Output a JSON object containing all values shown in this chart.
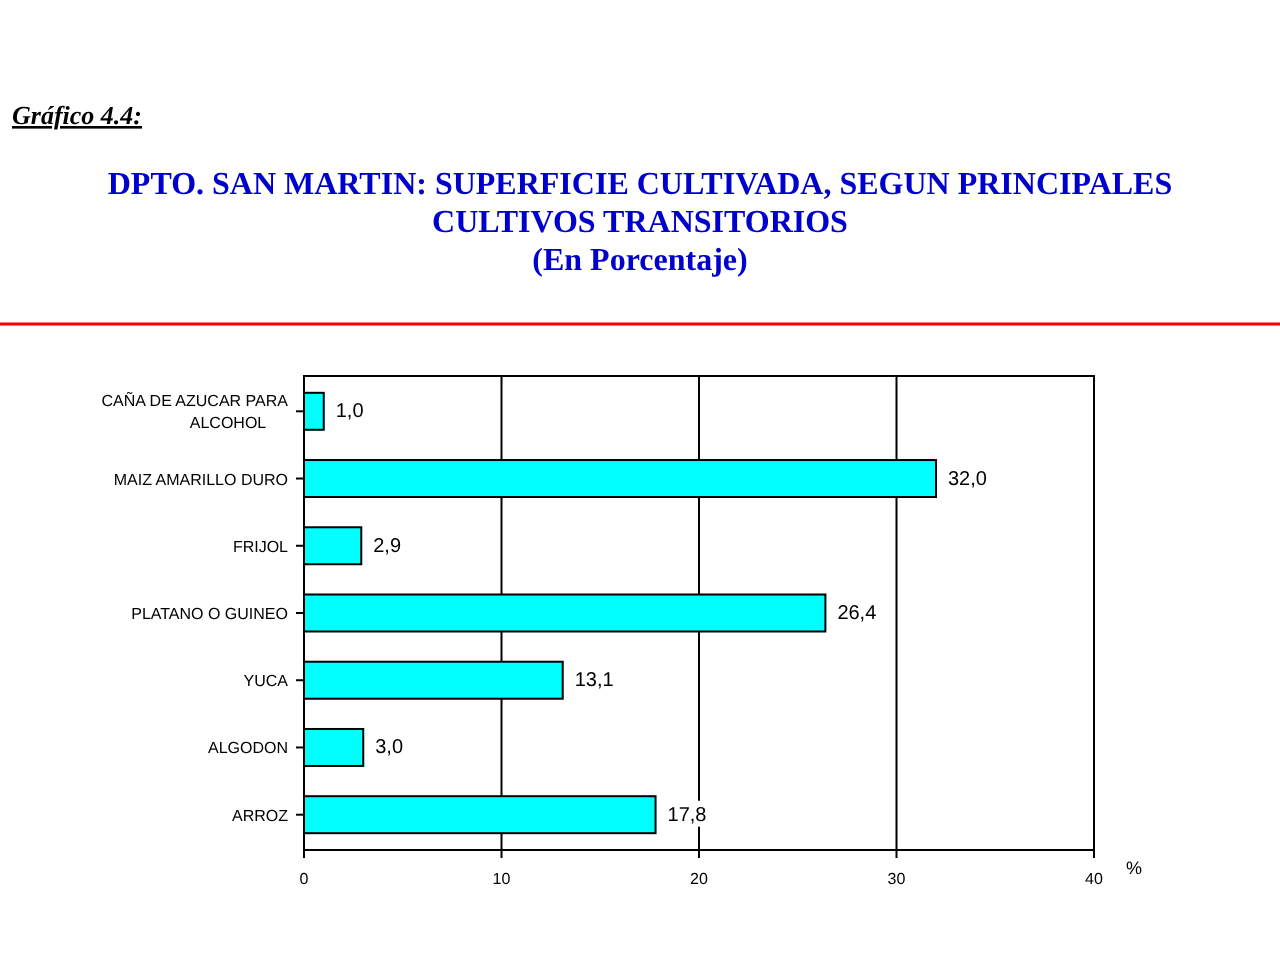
{
  "chart_data": {
    "type": "bar",
    "orientation": "horizontal",
    "title": "DPTO. SAN MARTIN: SUPERFICIE CULTIVADA, SEGUN PRINCIPALES CULTIVOS TRANSITORIOS",
    "subtitle": "(En Porcentaje)",
    "annotations": [
      "Gráfico 4.4:"
    ],
    "xlabel": "%",
    "categories": [
      "CAÑA DE AZUCAR PARA ALCOHOL",
      "MAIZ AMARILLO DURO",
      "FRIJOL",
      "PLATANO O GUINEO",
      "YUCA",
      "ALGODON",
      "ARROZ"
    ],
    "values": [
      1.0,
      32.0,
      2.9,
      26.4,
      13.1,
      3.0,
      17.8
    ],
    "value_labels": [
      "1,0",
      "32,0",
      "2,9",
      "26,4",
      "13,1",
      "3,0",
      "17,8"
    ],
    "color": "#00ffff",
    "xlim": [
      0,
      40
    ],
    "xticks": [
      0,
      10,
      20,
      30,
      40
    ],
    "grid": "x"
  }
}
